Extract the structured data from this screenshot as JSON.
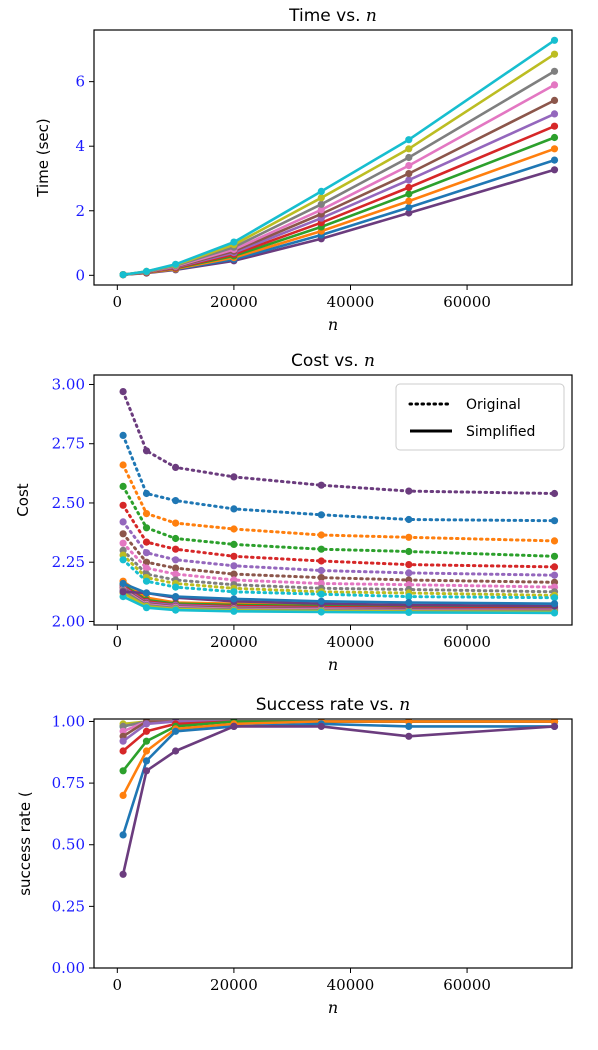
{
  "palette": [
    "#6b3c7e",
    "#1f77b4",
    "#ff7f0e",
    "#2ca02c",
    "#d62728",
    "#9467bd",
    "#8c564b",
    "#e377c2",
    "#7f7f7f",
    "#bcbd22",
    "#17becf"
  ],
  "tick_color_x": "#000000",
  "tick_color_y": "#1a1aff",
  "chart_data": [
    {
      "type": "line",
      "title": "Time vs. ",
      "title_math": "n",
      "xlabel": "n",
      "ylabel": "Time (sec)",
      "x": [
        1000,
        5000,
        10000,
        20000,
        35000,
        50000,
        75000
      ],
      "xlim": [
        -4000,
        78000
      ],
      "ylim": [
        -0.3,
        7.6
      ],
      "xticks": [
        0,
        20000,
        40000,
        60000
      ],
      "yticks": [
        0,
        2,
        4,
        6
      ],
      "grid": false,
      "series": [
        {
          "style": "solid",
          "values": [
            0.02,
            0.07,
            0.17,
            0.45,
            1.13,
            1.93,
            3.27
          ]
        },
        {
          "style": "solid",
          "values": [
            0.02,
            0.08,
            0.19,
            0.5,
            1.25,
            2.1,
            3.57
          ]
        },
        {
          "style": "solid",
          "values": [
            0.02,
            0.08,
            0.2,
            0.55,
            1.37,
            2.3,
            3.92
          ]
        },
        {
          "style": "solid",
          "values": [
            0.02,
            0.09,
            0.22,
            0.6,
            1.5,
            2.52,
            4.27
          ]
        },
        {
          "style": "solid",
          "values": [
            0.02,
            0.09,
            0.23,
            0.65,
            1.63,
            2.72,
            4.62
          ]
        },
        {
          "style": "solid",
          "values": [
            0.02,
            0.1,
            0.25,
            0.7,
            1.77,
            2.95,
            5.0
          ]
        },
        {
          "style": "solid",
          "values": [
            0.02,
            0.1,
            0.26,
            0.75,
            1.9,
            3.15,
            5.42
          ]
        },
        {
          "style": "solid",
          "values": [
            0.02,
            0.11,
            0.28,
            0.8,
            2.03,
            3.4,
            5.9
          ]
        },
        {
          "style": "solid",
          "values": [
            0.02,
            0.11,
            0.3,
            0.87,
            2.2,
            3.65,
            6.32
          ]
        },
        {
          "style": "solid",
          "values": [
            0.02,
            0.12,
            0.32,
            0.95,
            2.4,
            3.92,
            6.85
          ]
        },
        {
          "style": "solid",
          "values": [
            0.02,
            0.12,
            0.34,
            1.03,
            2.6,
            4.2,
            7.28
          ]
        }
      ]
    },
    {
      "type": "line",
      "title": "Cost vs. ",
      "title_math": "n",
      "xlabel": "n",
      "ylabel": "Cost",
      "x": [
        1000,
        5000,
        10000,
        20000,
        35000,
        50000,
        75000
      ],
      "xlim": [
        -4000,
        78000
      ],
      "ylim": [
        1.985,
        3.04
      ],
      "xticks": [
        0,
        20000,
        40000,
        60000
      ],
      "yticks": [
        2.0,
        2.25,
        2.5,
        2.75,
        3.0
      ],
      "ytick_labels": [
        "2.00",
        "2.25",
        "2.50",
        "2.75",
        "3.00"
      ],
      "grid": false,
      "legend": {
        "position": "top-right",
        "entries": [
          {
            "label": "Original",
            "style": "dotted"
          },
          {
            "label": "Simplified",
            "style": "solid"
          }
        ]
      },
      "series": [
        {
          "style": "dotted",
          "color": 0,
          "values": [
            2.97,
            2.72,
            2.65,
            2.61,
            2.575,
            2.55,
            2.54
          ]
        },
        {
          "style": "dotted",
          "color": 1,
          "values": [
            2.785,
            2.54,
            2.51,
            2.475,
            2.45,
            2.43,
            2.425
          ]
        },
        {
          "style": "dotted",
          "color": 2,
          "values": [
            2.66,
            2.455,
            2.415,
            2.39,
            2.365,
            2.355,
            2.34
          ]
        },
        {
          "style": "dotted",
          "color": 3,
          "values": [
            2.57,
            2.395,
            2.35,
            2.325,
            2.305,
            2.295,
            2.275
          ]
        },
        {
          "style": "dotted",
          "color": 4,
          "values": [
            2.49,
            2.335,
            2.305,
            2.275,
            2.255,
            2.24,
            2.23
          ]
        },
        {
          "style": "dotted",
          "color": 5,
          "values": [
            2.42,
            2.29,
            2.26,
            2.235,
            2.215,
            2.205,
            2.195
          ]
        },
        {
          "style": "dotted",
          "color": 6,
          "values": [
            2.37,
            2.25,
            2.225,
            2.2,
            2.185,
            2.175,
            2.165
          ]
        },
        {
          "style": "dotted",
          "color": 7,
          "values": [
            2.33,
            2.225,
            2.2,
            2.175,
            2.16,
            2.155,
            2.145
          ]
        },
        {
          "style": "dotted",
          "color": 8,
          "values": [
            2.3,
            2.2,
            2.175,
            2.155,
            2.14,
            2.135,
            2.125
          ]
        },
        {
          "style": "dotted",
          "color": 9,
          "values": [
            2.28,
            2.185,
            2.16,
            2.14,
            2.125,
            2.12,
            2.11
          ]
        },
        {
          "style": "dotted",
          "color": 10,
          "values": [
            2.26,
            2.17,
            2.145,
            2.125,
            2.115,
            2.105,
            2.1
          ]
        },
        {
          "style": "solid",
          "color": 2,
          "values": [
            2.17,
            2.1,
            2.08,
            2.075,
            2.07,
            2.065,
            2.06
          ]
        },
        {
          "style": "solid",
          "color": 3,
          "values": [
            2.155,
            2.09,
            2.075,
            2.07,
            2.065,
            2.06,
            2.055
          ]
        },
        {
          "style": "solid",
          "color": 4,
          "values": [
            2.15,
            2.085,
            2.07,
            2.065,
            2.06,
            2.057,
            2.053
          ]
        },
        {
          "style": "solid",
          "color": 5,
          "values": [
            2.145,
            2.08,
            2.068,
            2.06,
            2.056,
            2.053,
            2.05
          ]
        },
        {
          "style": "solid",
          "color": 6,
          "values": [
            2.14,
            2.076,
            2.063,
            2.057,
            2.053,
            2.05,
            2.047
          ]
        },
        {
          "style": "solid",
          "color": 7,
          "values": [
            2.135,
            2.072,
            2.06,
            2.053,
            2.05,
            2.047,
            2.045
          ]
        },
        {
          "style": "solid",
          "color": 8,
          "values": [
            2.13,
            2.068,
            2.056,
            2.05,
            2.047,
            2.045,
            2.043
          ]
        },
        {
          "style": "solid",
          "color": 9,
          "values": [
            2.12,
            2.064,
            2.052,
            2.047,
            2.044,
            2.042,
            2.04
          ]
        },
        {
          "style": "solid",
          "color": 10,
          "values": [
            2.105,
            2.058,
            2.048,
            2.043,
            2.04,
            2.038,
            2.036
          ]
        },
        {
          "style": "solid",
          "color": 0,
          "values": [
            2.125,
            2.12,
            2.1,
            2.085,
            2.075,
            2.07,
            2.065
          ]
        },
        {
          "style": "solid",
          "color": 1,
          "values": [
            2.16,
            2.12,
            2.105,
            2.095,
            2.085,
            2.08,
            2.075
          ]
        }
      ]
    },
    {
      "type": "line",
      "title": "Success rate vs. ",
      "title_math": "n",
      "xlabel": "n",
      "ylabel": "success rate (",
      "x": [
        1000,
        5000,
        10000,
        20000,
        35000,
        50000,
        75000
      ],
      "xlim": [
        -4000,
        78000
      ],
      "ylim": [
        0.0,
        1.01
      ],
      "xticks": [
        0,
        20000,
        40000,
        60000
      ],
      "yticks": [
        0.0,
        0.25,
        0.5,
        0.75,
        1.0
      ],
      "ytick_labels": [
        "0.00",
        "0.25",
        "0.50",
        "0.75",
        "1.00"
      ],
      "grid": false,
      "series": [
        {
          "style": "solid",
          "color": 10,
          "values": [
            0.98,
            1.0,
            1.0,
            1.0,
            1.0,
            1.0,
            1.0
          ]
        },
        {
          "style": "solid",
          "color": 9,
          "values": [
            0.99,
            1.0,
            1.0,
            1.0,
            1.0,
            1.0,
            1.0
          ]
        },
        {
          "style": "solid",
          "color": 8,
          "values": [
            0.98,
            1.0,
            1.0,
            1.0,
            1.0,
            1.0,
            1.0
          ]
        },
        {
          "style": "solid",
          "color": 7,
          "values": [
            0.96,
            1.0,
            1.0,
            1.0,
            1.0,
            1.0,
            1.0
          ]
        },
        {
          "style": "solid",
          "color": 6,
          "values": [
            0.94,
            1.0,
            1.0,
            1.0,
            1.0,
            1.0,
            1.0
          ]
        },
        {
          "style": "solid",
          "color": 5,
          "values": [
            0.92,
            0.99,
            1.0,
            1.0,
            1.0,
            1.0,
            1.0
          ]
        },
        {
          "style": "solid",
          "color": 4,
          "values": [
            0.88,
            0.96,
            0.99,
            1.0,
            1.0,
            1.0,
            1.0
          ]
        },
        {
          "style": "solid",
          "color": 3,
          "values": [
            0.8,
            0.92,
            0.98,
            1.0,
            1.0,
            1.0,
            1.0
          ]
        },
        {
          "style": "solid",
          "color": 2,
          "values": [
            0.7,
            0.88,
            0.97,
            0.99,
            1.0,
            1.0,
            1.0
          ]
        },
        {
          "style": "solid",
          "color": 1,
          "values": [
            0.54,
            0.84,
            0.96,
            0.98,
            0.99,
            0.98,
            0.98
          ]
        },
        {
          "style": "solid",
          "color": 0,
          "values": [
            0.38,
            0.8,
            0.88,
            0.98,
            0.98,
            0.94,
            0.98
          ]
        }
      ]
    }
  ]
}
